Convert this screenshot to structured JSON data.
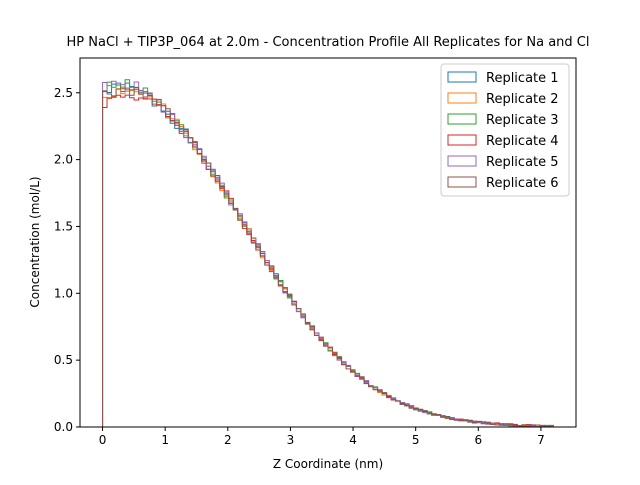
{
  "chart_data": {
    "type": "line",
    "title": "HP NaCl + TIP3P_064 at 2.0m - Concentration Profile All Replicates for Na and Cl",
    "xlabel": "Z Coordinate (nm)",
    "ylabel": "Concentration (mol/L)",
    "xlim": [
      -0.36,
      7.56
    ],
    "ylim": [
      0.0,
      2.76
    ],
    "xticks": [
      0,
      1,
      2,
      3,
      4,
      5,
      6,
      7
    ],
    "xtick_labels": [
      "0",
      "1",
      "2",
      "3",
      "4",
      "5",
      "6",
      "7"
    ],
    "yticks": [
      0.0,
      0.5,
      1.0,
      1.5,
      2.0,
      2.5
    ],
    "ytick_labels": [
      "0.0",
      "0.5",
      "1.0",
      "1.5",
      "2.0",
      "2.5"
    ],
    "grid": false,
    "legend_position": "top-right",
    "curve_model": {
      "x_start": 0.0,
      "x_end": 7.2,
      "bin_width": 0.072,
      "peak_x": 0.3,
      "peak_y": 2.52,
      "sigma_nm": 1.95
    },
    "series": [
      {
        "name": "Replicate 1",
        "color": "#1f77b4",
        "offset": 0.03,
        "noise_seed": 1
      },
      {
        "name": "Replicate 2",
        "color": "#ff7f0e",
        "offset": 0.0,
        "noise_seed": 2
      },
      {
        "name": "Replicate 3",
        "color": "#2ca02c",
        "offset": 0.06,
        "noise_seed": 3
      },
      {
        "name": "Replicate 4",
        "color": "#d62728",
        "offset": -0.05,
        "noise_seed": 4
      },
      {
        "name": "Replicate 5",
        "color": "#9467bd",
        "offset": 0.07,
        "noise_seed": 5
      },
      {
        "name": "Replicate 6",
        "color": "#8c564b",
        "offset": 0.02,
        "noise_seed": 6
      }
    ]
  }
}
